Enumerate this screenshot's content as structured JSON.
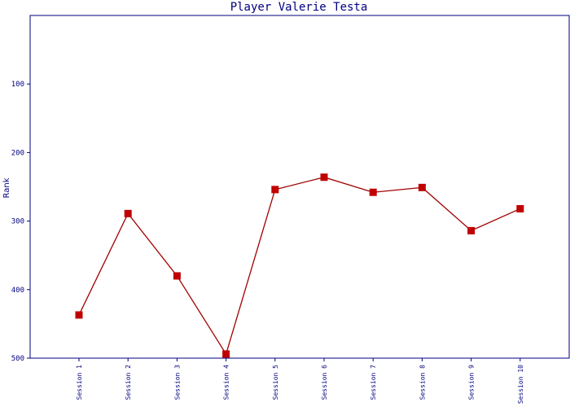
{
  "chart_data": {
    "type": "line",
    "title": "Player Valerie Testa",
    "ylabel": "Rank",
    "xlabel": "",
    "y_inverted": true,
    "ylim": [
      0,
      500
    ],
    "yticks": [
      "100",
      "200",
      "300",
      "400",
      "500"
    ],
    "categories": [
      "Session 1",
      "Session 2",
      "Session 3",
      "Session 4",
      "Session 5",
      "Session 6",
      "Session 7",
      "Session 8",
      "Session 9",
      "Session 10"
    ],
    "series": [
      {
        "values": [
          437,
          289,
          380,
          494,
          254,
          236,
          258,
          251,
          314,
          282
        ]
      }
    ],
    "colors": {
      "line": "#a00000",
      "marker": "#c00000",
      "axis": "#000080",
      "text": "#000080"
    },
    "grid": false,
    "legend": "none"
  }
}
